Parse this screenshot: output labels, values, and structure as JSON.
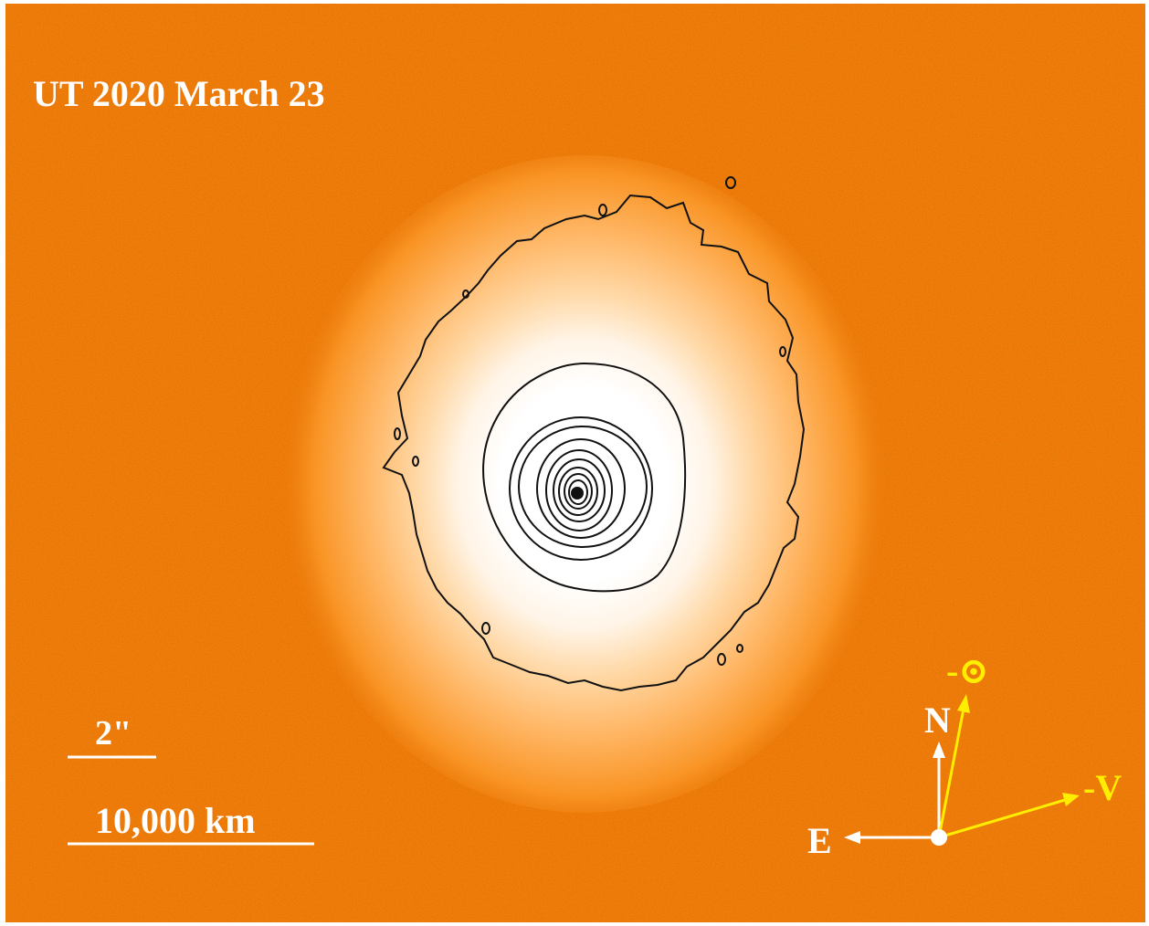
{
  "image": {
    "date_label": "UT 2020 March 23",
    "scale_bars": {
      "angular_label": "2\"",
      "physical_label": "10,000 km"
    },
    "compass": {
      "north_label": "N",
      "east_label": "E",
      "sun_label": "-⊙",
      "velocity_label": "-V"
    },
    "colors": {
      "background": "#f07c0a",
      "coma_core": "#ffffff",
      "contour": "#111111",
      "compass_white": "#ffffff",
      "compass_yellow": "#ffee00"
    }
  }
}
